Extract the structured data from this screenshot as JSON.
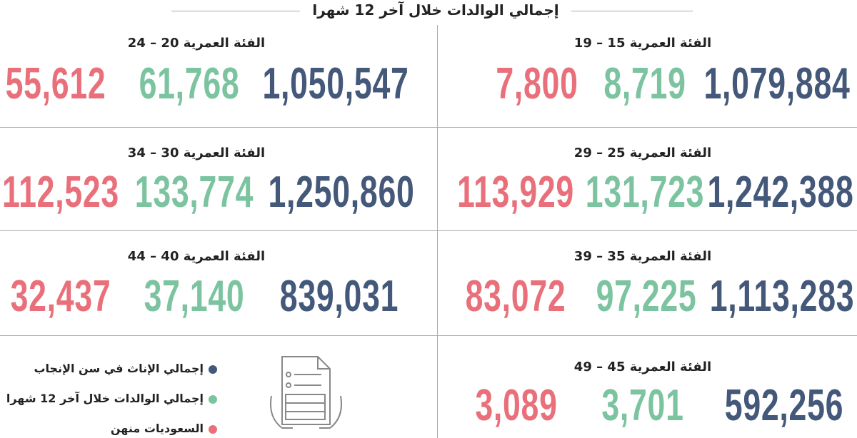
{
  "header": {
    "title": "إجمالي الوالدات خلال آخر 12 شهرا"
  },
  "groups": [
    {
      "label": "الفئة العمرية 15 – 19",
      "values": [
        "1,079,884",
        "8,719",
        "7,800"
      ]
    },
    {
      "label": "الفئة العمرية 20 – 24",
      "values": [
        "1,050,547",
        "61,768",
        "55,612"
      ]
    },
    {
      "label": "الفئة العمرية 25 – 29",
      "values": [
        "1,242,388",
        "131,723",
        "113,929"
      ]
    },
    {
      "label": "الفئة العمرية 30 – 34",
      "values": [
        "1,250,860",
        "133,774",
        "112,523"
      ]
    },
    {
      "label": "الفئة العمرية 35 – 39",
      "values": [
        "1,113,283",
        "97,225",
        "83,072"
      ]
    },
    {
      "label": "الفئة العمرية 40 – 44",
      "values": [
        "839,031",
        "37,140",
        "32,437"
      ]
    },
    {
      "label": "الفئة العمرية 45 – 49",
      "values": [
        "592,256",
        "3,701",
        "3,089"
      ]
    }
  ],
  "legend": [
    {
      "text": "إجمالي الإناث في سن الإنجاب",
      "color": "#44587a"
    },
    {
      "text": "إجمالي الوالدات خلال آخر 12 شهرا",
      "color": "#7cc3a0"
    },
    {
      "text": "السعوديات منهن",
      "color": "#e9707a"
    }
  ]
}
